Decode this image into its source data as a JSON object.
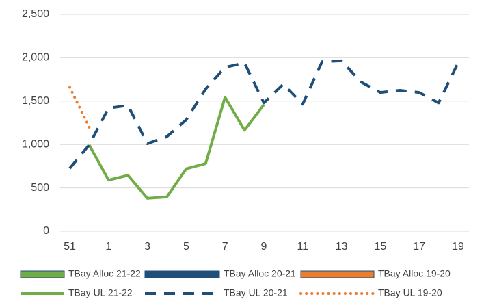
{
  "chart_data": {
    "type": "line",
    "categories": [
      "51",
      null,
      "1",
      null,
      "3",
      null,
      "5",
      null,
      "7",
      null,
      "9",
      null,
      "11",
      null,
      "13",
      null,
      "15",
      null,
      "17",
      null,
      "19"
    ],
    "ylim": [
      0,
      2500
    ],
    "yticks": [
      0,
      500,
      {
        "value": 1000,
        "label": "1,000"
      },
      {
        "value": 1500,
        "label": "1,500"
      },
      {
        "value": 2000,
        "label": "2,000"
      },
      {
        "value": 2500,
        "label": "2,500"
      }
    ],
    "grid": true,
    "legend": "bottom",
    "series": [
      {
        "name": "TBay Alloc 21-22",
        "color": "#70ad47",
        "style": "box",
        "values": [
          null,
          null,
          null,
          null,
          null,
          null,
          null,
          null,
          null,
          null,
          null,
          null,
          null,
          null,
          null,
          null,
          null,
          null,
          null,
          null,
          null
        ]
      },
      {
        "name": "TBay Alloc 20-21",
        "color": "#1f4e79",
        "style": "box",
        "values": [
          null,
          null,
          null,
          null,
          null,
          null,
          null,
          null,
          null,
          null,
          null,
          null,
          null,
          null,
          null,
          null,
          null,
          null,
          null,
          null,
          null
        ]
      },
      {
        "name": "TBay Alloc 19-20",
        "color": "#ed7d31",
        "style": "box",
        "values": [
          null,
          null,
          null,
          null,
          null,
          null,
          null,
          null,
          null,
          null,
          null,
          null,
          null,
          null,
          null,
          null,
          null,
          null,
          null,
          null,
          null
        ]
      },
      {
        "name": "TBay UL 21-22",
        "color": "#70ad47",
        "style": "solid",
        "values": [
          null,
          995,
          590,
          645,
          380,
          395,
          720,
          780,
          1545,
          1165,
          1460,
          null,
          null,
          null,
          null,
          null,
          null,
          null,
          null,
          null,
          null
        ]
      },
      {
        "name": "TBay UL 20-21",
        "color": "#1f4e79",
        "style": "dashed",
        "values": [
          725,
          995,
          1420,
          1450,
          1010,
          1090,
          1285,
          1640,
          1890,
          1940,
          1480,
          1695,
          1465,
          1955,
          1965,
          1720,
          1600,
          1625,
          1600,
          1480,
          1940
        ]
      },
      {
        "name": "TBay UL 19-20",
        "color": "#ed7d31",
        "style": "dotted",
        "values": [
          1660,
          1200,
          null,
          null,
          null,
          null,
          null,
          null,
          null,
          null,
          null,
          null,
          null,
          null,
          null,
          null,
          null,
          null,
          null,
          null,
          null
        ]
      }
    ]
  }
}
